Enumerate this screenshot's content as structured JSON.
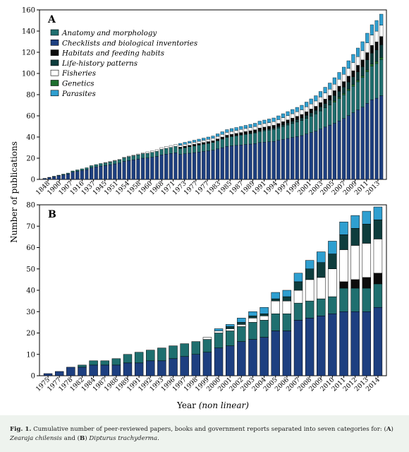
{
  "ylabel": "Number of publications",
  "xlabel_main": "Year",
  "xlabel_note": "(non linear)",
  "caption": {
    "fig": "Fig. 1.",
    "text1": " Cumulative number of peer-reviewed papers, books and government reports separated into seven categories for: (",
    "a": "A",
    "text2": ") ",
    "species_a": "Zearaja chilensis",
    "text3": " and (",
    "b": "B",
    "text4": ") ",
    "species_b": "Dipturus trachyderma",
    "text5": "."
  },
  "colors": {
    "Anatomy and morphology": "#1f6f6f",
    "Checklists and biological inventories": "#1d3f80",
    "Habitats and feeding habits": "#0c0c0c",
    "Life-history patterns": "#0e3d3d",
    "Fisheries": "#ffffff",
    "Genetics": "#1e6e2e",
    "Parasites": "#2f9fd0"
  },
  "chart_data": [
    {
      "panel": "A",
      "type": "bar",
      "stacked": true,
      "ylim": [
        0,
        160
      ],
      "yticks": [
        0,
        20,
        40,
        60,
        80,
        100,
        120,
        140,
        160
      ],
      "legend": [
        "Anatomy and morphology",
        "Checklists and biological inventories",
        "Habitats and feeding habits",
        "Life-history patterns",
        "Fisheries",
        "Genetics",
        "Parasites"
      ],
      "legend_placement": "top-left",
      "xtick_labels": [
        "1848",
        "1900",
        "1907",
        "1916",
        "1937",
        "1945",
        "1951",
        "1954",
        "1958",
        "1960",
        "1968",
        "1971",
        "1973",
        "1977",
        "1977",
        "1983",
        "1985",
        "1987",
        "1989",
        "1991",
        "1994",
        "1997",
        "1999",
        "2001",
        "2003",
        "2005",
        "2007",
        "2009",
        "2011",
        "2013"
      ],
      "stack_order": [
        "Checklists and biological inventories",
        "Anatomy and morphology",
        "Genetics",
        "Life-history patterns",
        "Habitats and feeding habits",
        "Fisheries",
        "Parasites"
      ],
      "totals": [
        1,
        2,
        3,
        4,
        5,
        6,
        8,
        9,
        10,
        11,
        13,
        14,
        15,
        16,
        17,
        18,
        19,
        21,
        22,
        23,
        24,
        25,
        26,
        27,
        28,
        30,
        31,
        32,
        33,
        34,
        35,
        36,
        37,
        38,
        39,
        40,
        41,
        43,
        45,
        47,
        48,
        49,
        50,
        51,
        52,
        53,
        55,
        56,
        57,
        58,
        60,
        62,
        64,
        66,
        68,
        70,
        73,
        76,
        79,
        83,
        87,
        91,
        96,
        101,
        106,
        112,
        118,
        124,
        130,
        138,
        146,
        150,
        156
      ]
    },
    {
      "panel": "B",
      "type": "bar",
      "stacked": true,
      "ylim": [
        0,
        80
      ],
      "yticks": [
        0,
        10,
        20,
        30,
        40,
        50,
        60,
        70,
        80
      ],
      "x": [
        "1975",
        "1977",
        "1978",
        "1982",
        "1984",
        "1987",
        "1988",
        "1989",
        "1991",
        "1992",
        "1993",
        "1996",
        "1997",
        "1998",
        "1999",
        "2000",
        "2001",
        "2002",
        "2003",
        "2004",
        "2005",
        "2006",
        "2007",
        "2008",
        "2009",
        "2010",
        "2011",
        "2012",
        "2013",
        "2014"
      ],
      "stack_order": [
        "Checklists and biological inventories",
        "Anatomy and morphology",
        "Genetics",
        "Habitats and feeding habits",
        "Fisheries",
        "Life-history patterns",
        "Parasites"
      ],
      "series": [
        {
          "name": "Checklists and biological inventories",
          "values": [
            1,
            2,
            4,
            4,
            5,
            5,
            5,
            6,
            6,
            7,
            7,
            8,
            9,
            10,
            11,
            13,
            14,
            16,
            17,
            18,
            21,
            21,
            26,
            27,
            28,
            29,
            30,
            30,
            30,
            32
          ]
        },
        {
          "name": "Anatomy and morphology",
          "values": [
            0,
            0,
            0,
            1,
            2,
            2,
            3,
            4,
            5,
            5,
            6,
            6,
            6,
            6,
            6,
            7,
            7,
            7,
            8,
            8,
            8,
            8,
            8,
            8,
            8,
            8,
            11,
            11,
            11,
            11
          ]
        },
        {
          "name": "Genetics",
          "values": [
            0,
            0,
            0,
            0,
            0,
            0,
            0,
            0,
            0,
            0,
            0,
            0,
            0,
            0,
            0,
            0,
            0,
            0,
            0,
            0,
            0,
            0,
            0,
            0,
            0,
            0,
            0,
            0,
            0,
            0
          ]
        },
        {
          "name": "Habitats and feeding habits",
          "values": [
            0,
            0,
            0,
            0,
            0,
            0,
            0,
            0,
            0,
            0,
            0,
            0,
            0,
            0,
            0,
            0,
            0,
            0,
            0,
            0,
            0,
            0,
            0,
            0,
            0,
            0,
            3,
            4,
            5,
            5
          ]
        },
        {
          "name": "Fisheries",
          "values": [
            0,
            0,
            0,
            0,
            0,
            0,
            0,
            0,
            0,
            0,
            0,
            0,
            0,
            0,
            1,
            1,
            1,
            1,
            2,
            2,
            6,
            6,
            6,
            10,
            10,
            13,
            15,
            16,
            16,
            16
          ]
        },
        {
          "name": "Life-history patterns",
          "values": [
            0,
            0,
            0,
            0,
            0,
            0,
            0,
            0,
            0,
            0,
            0,
            0,
            0,
            0,
            0,
            0,
            1,
            1,
            1,
            1,
            1,
            2,
            4,
            5,
            7,
            7,
            7,
            8,
            9,
            9
          ]
        },
        {
          "name": "Parasites",
          "values": [
            0,
            0,
            0,
            0,
            0,
            0,
            0,
            0,
            0,
            0,
            0,
            0,
            0,
            0,
            0,
            1,
            1,
            2,
            2,
            3,
            3,
            3,
            4,
            4,
            5,
            6,
            6,
            6,
            6,
            6
          ]
        }
      ]
    }
  ]
}
